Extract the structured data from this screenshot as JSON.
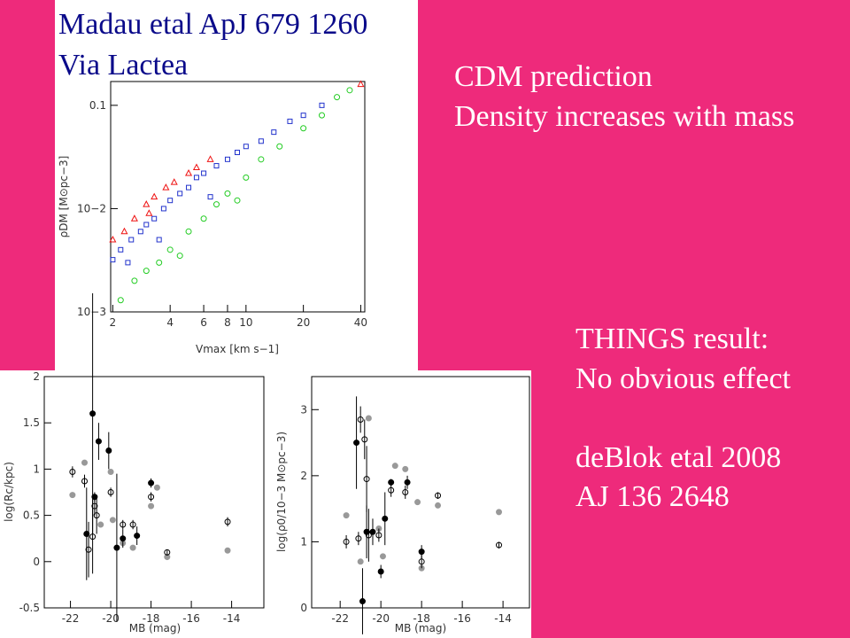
{
  "slide": {
    "source_1": "Madau etal ApJ 679 1260",
    "source_2": "Via Lactea",
    "claim_1": "CDM prediction",
    "claim_2": "Density increases with mass",
    "result_1": "THINGS result:",
    "result_2": "No obvious effect",
    "ref_1": "deBlok etal 2008",
    "ref_2": "AJ 136 2648"
  },
  "chart_data": [
    {
      "type": "scatter",
      "x_label": "Vmax [km s−1]",
      "y_label": "ρDM [M⊙pc−3]",
      "xlog": true,
      "ylog": true,
      "xlim": [
        1.95,
        42
      ],
      "ylim": [
        0.001,
        0.17
      ],
      "xticks": [
        2,
        4,
        6,
        8,
        10,
        20,
        40
      ],
      "yticks": [
        {
          "value": 0.001,
          "label": "10−3"
        },
        {
          "value": 0.01,
          "label": "10−2"
        },
        0.1
      ],
      "series": [
        {
          "color": "#22cc22",
          "marker": "circle",
          "filled": false,
          "x": [
            2.2,
            2.6,
            3,
            3.5,
            4,
            5,
            6,
            7,
            8,
            10,
            12,
            15,
            20,
            25,
            30,
            35,
            4.5,
            9
          ],
          "values": [
            0.0013,
            0.002,
            0.0025,
            0.003,
            0.004,
            0.006,
            0.008,
            0.011,
            0.014,
            0.02,
            0.03,
            0.04,
            0.06,
            0.08,
            0.12,
            0.14,
            0.0035,
            0.012
          ]
        },
        {
          "color": "#2233cc",
          "marker": "square",
          "filled": false,
          "x": [
            2,
            2.2,
            2.5,
            2.8,
            3,
            3.3,
            3.7,
            4,
            4.5,
            5,
            5.5,
            6,
            7,
            8,
            9,
            10,
            12,
            14,
            17,
            20,
            25,
            2.4,
            3.5,
            6.5
          ],
          "values": [
            0.0032,
            0.004,
            0.005,
            0.006,
            0.007,
            0.008,
            0.01,
            0.012,
            0.014,
            0.016,
            0.02,
            0.022,
            0.026,
            0.03,
            0.035,
            0.04,
            0.045,
            0.055,
            0.07,
            0.08,
            0.1,
            0.003,
            0.005,
            0.013
          ]
        },
        {
          "color": "#ee1111",
          "marker": "triangle",
          "filled": false,
          "x": [
            2,
            2.3,
            2.6,
            3,
            3.3,
            3.8,
            4.2,
            5,
            5.5,
            6.5,
            3.1,
            40
          ],
          "values": [
            0.005,
            0.006,
            0.008,
            0.011,
            0.013,
            0.016,
            0.018,
            0.022,
            0.025,
            0.03,
            0.009,
            0.16
          ]
        }
      ]
    },
    {
      "type": "scatter",
      "x_label": "MB (mag)",
      "y_label": "log(Rc/kpc)",
      "xlim": [
        -23.3,
        -12.4
      ],
      "ylim": [
        -0.5,
        2
      ],
      "xticks": [
        -22,
        -20,
        -18,
        -16,
        -14
      ],
      "yticks": [
        -0.5,
        0,
        0.5,
        1,
        1.5,
        2
      ],
      "series": [
        {
          "color": "#999999",
          "marker": "circle",
          "filled": true,
          "x": [
            -21.9,
            -21.3,
            -20.5,
            -20,
            -19.9,
            -19.4,
            -18.9,
            -18,
            -17.7,
            -17.2,
            -14.2
          ],
          "values": [
            0.72,
            1.07,
            0.4,
            0.97,
            0.45,
            0.2,
            0.15,
            0.6,
            0.8,
            0.05,
            0.12
          ]
        },
        {
          "color": "#000000",
          "marker": "circle",
          "filled": false,
          "x": [
            -21.9,
            -21.3,
            -21.1,
            -20.9,
            -20.8,
            -20.7,
            -20,
            -19.4,
            -18.9,
            -18,
            -17.2,
            -14.2
          ],
          "values": [
            0.97,
            0.87,
            0.13,
            0.27,
            0.6,
            0.5,
            0.75,
            0.4,
            0.4,
            0.7,
            0.1,
            0.43
          ],
          "errors": [
            0.06,
            0.07,
            0.3,
            0.4,
            0.1,
            0.2,
            0.05,
            0.05,
            0.05,
            0.05,
            0.03,
            0.05
          ]
        },
        {
          "color": "#000000",
          "marker": "circle",
          "filled": true,
          "x": [
            -21.2,
            -20.9,
            -20.6,
            -20.1,
            -19.7,
            -19.4,
            -18.7,
            -18,
            -20.8
          ],
          "values": [
            0.3,
            1.6,
            1.3,
            1.2,
            0.15,
            0.25,
            0.28,
            0.85,
            0.7
          ],
          "errors": [
            0.5,
            1.3,
            0.2,
            0.2,
            0.8,
            0.1,
            0.1,
            0.05,
            0.05
          ]
        }
      ]
    },
    {
      "type": "scatter",
      "x_label": "MB (mag)",
      "y_label": "log(ρ0/10−3 M⊙pc−3)",
      "xlim": [
        -23.4,
        -12.7
      ],
      "ylim": [
        0,
        3.5
      ],
      "xticks": [
        -22,
        -20,
        -18,
        -16,
        -14
      ],
      "yticks": [
        0,
        1,
        2,
        3
      ],
      "series": [
        {
          "color": "#999999",
          "marker": "circle",
          "filled": true,
          "x": [
            -21.7,
            -21,
            -20.6,
            -20.1,
            -19.9,
            -19.3,
            -18.8,
            -18.2,
            -18,
            -17.2,
            -14.2
          ],
          "values": [
            1.4,
            0.7,
            2.87,
            1.2,
            0.78,
            2.15,
            2.1,
            1.6,
            0.6,
            1.55,
            1.45
          ]
        },
        {
          "color": "#000000",
          "marker": "circle",
          "filled": false,
          "x": [
            -21.7,
            -21.1,
            -21,
            -20.8,
            -20.7,
            -20.6,
            -20.1,
            -19.5,
            -18.8,
            -18,
            -17.2,
            -14.2
          ],
          "values": [
            1,
            1.05,
            2.85,
            2.55,
            1.95,
            1.1,
            1.1,
            1.78,
            1.75,
            0.7,
            1.7,
            0.95
          ],
          "errors": [
            0.1,
            0.1,
            0.2,
            0.3,
            0.5,
            0.4,
            0.1,
            0.1,
            0.1,
            0.1,
            0.05,
            0.05
          ]
        },
        {
          "color": "#000000",
          "marker": "circle",
          "filled": true,
          "x": [
            -21.2,
            -20.9,
            -20.7,
            -20.4,
            -20,
            -19.8,
            -19.5,
            -18.7,
            -18
          ],
          "values": [
            2.5,
            0.1,
            1.15,
            1.15,
            0.55,
            1.35,
            1.9,
            1.9,
            0.85
          ],
          "errors": [
            0.7,
            0.5,
            0.4,
            0.2,
            0.1,
            0.4,
            0.05,
            0.1,
            0.1
          ]
        }
      ]
    }
  ]
}
